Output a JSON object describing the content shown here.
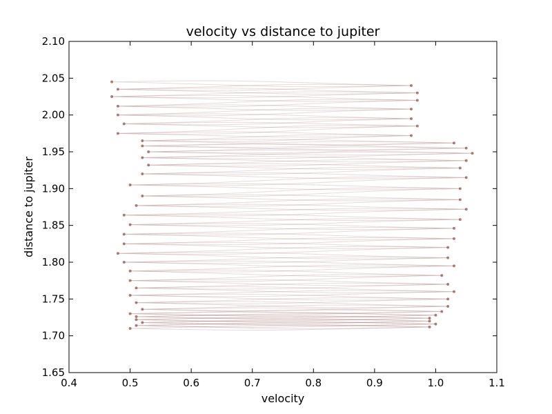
{
  "chart_data": {
    "type": "line",
    "title": "velocity vs distance to jupiter",
    "xlabel": "velocity",
    "ylabel": "distance to jupiter",
    "xlim": [
      0.4,
      1.1
    ],
    "ylim": [
      1.65,
      2.1
    ],
    "xticks": [
      "0.4",
      "0.5",
      "0.6",
      "0.7",
      "0.8",
      "0.9",
      "1.0",
      "1.1"
    ],
    "yticks": [
      "1.65",
      "1.70",
      "1.75",
      "1.80",
      "1.85",
      "1.90",
      "1.95",
      "2.00",
      "2.05",
      "2.10"
    ],
    "grid": false,
    "legend": "none",
    "series": [
      {
        "x": [
          0.47,
          0.96,
          0.48,
          0.97,
          0.47,
          0.97,
          0.48,
          0.96,
          0.48,
          0.96,
          0.49,
          0.97,
          0.48,
          0.96,
          0.52,
          1.03,
          0.52,
          1.05,
          0.53,
          1.06,
          0.52,
          1.05,
          0.53,
          1.04,
          0.52,
          1.05,
          0.5,
          1.04,
          0.52,
          1.04,
          0.51,
          1.05,
          0.49,
          1.04,
          0.5,
          1.03,
          0.49,
          1.03,
          0.49,
          1.02,
          0.48,
          1.02,
          0.49,
          1.03,
          0.5,
          1.01,
          0.5,
          1.02,
          0.51,
          1.03,
          0.5,
          1.02,
          0.51,
          1.02,
          0.52,
          1.01,
          0.5,
          1.0,
          0.51,
          0.99,
          0.51,
          0.99,
          0.52,
          1.0,
          0.51,
          0.99,
          0.5
        ],
        "y": [
          2.045,
          2.04,
          2.035,
          2.03,
          2.025,
          2.02,
          2.012,
          2.008,
          2.0,
          1.995,
          1.988,
          1.985,
          1.975,
          1.972,
          1.965,
          1.962,
          1.958,
          1.955,
          1.95,
          1.948,
          1.942,
          1.938,
          1.932,
          1.928,
          1.92,
          1.915,
          1.905,
          1.9,
          1.89,
          1.885,
          1.877,
          1.872,
          1.864,
          1.858,
          1.851,
          1.846,
          1.838,
          1.832,
          1.825,
          1.82,
          1.812,
          1.806,
          1.8,
          1.795,
          1.788,
          1.782,
          1.775,
          1.77,
          1.765,
          1.76,
          1.755,
          1.75,
          1.745,
          1.74,
          1.736,
          1.733,
          1.73,
          1.728,
          1.726,
          1.724,
          1.722,
          1.72,
          1.718,
          1.716,
          1.714,
          1.712,
          1.71
        ]
      }
    ],
    "colors": {
      "line": "#6b1a1a",
      "axes": "#000000",
      "background": "#ffffff"
    }
  }
}
